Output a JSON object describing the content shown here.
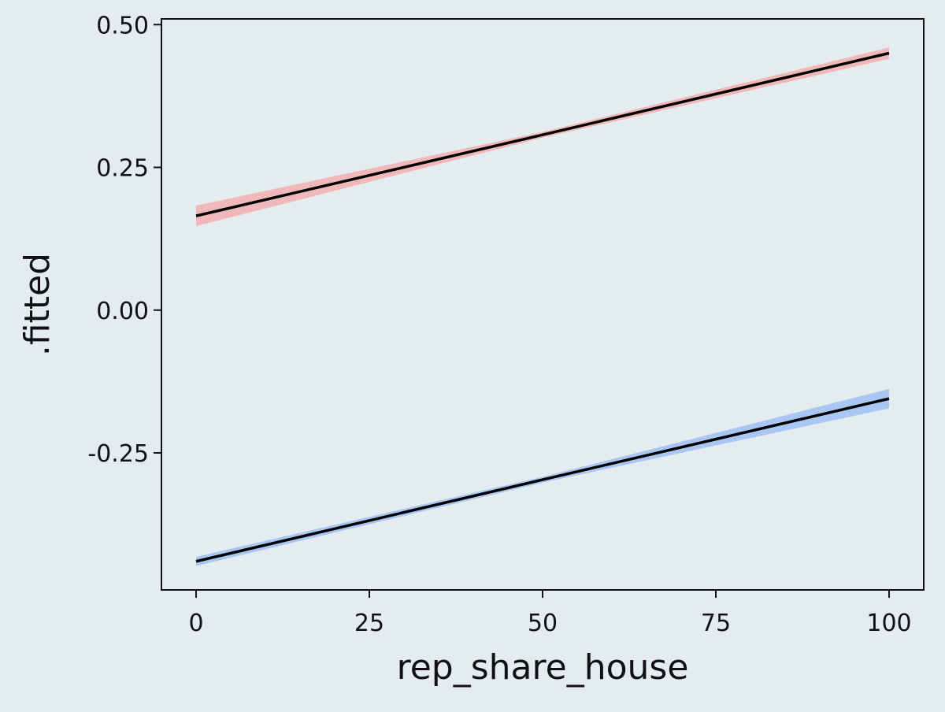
{
  "chart_data": {
    "type": "line",
    "title": "",
    "xlabel": "rep_share_house",
    "ylabel": ".fitted",
    "xlim": [
      -5,
      105
    ],
    "ylim": [
      -0.49,
      0.51
    ],
    "x_ticks": [
      0,
      25,
      50,
      75,
      100
    ],
    "x_tick_labels": [
      "0",
      "25",
      "50",
      "75",
      "100"
    ],
    "y_ticks": [
      0.5,
      0.25,
      0.0,
      -0.25
    ],
    "y_tick_labels": [
      "0.50",
      "0.25",
      "0.00",
      "-0.25"
    ],
    "grid": false,
    "legend": "none",
    "colors": {
      "background": "#e5ecf0",
      "line": "#000000",
      "axis": "#111111"
    },
    "series": [
      {
        "x": [
          0,
          50,
          100
        ],
        "y": [
          0.165,
          0.307,
          0.45
        ],
        "ci_lower": [
          0.147,
          0.302,
          0.44
        ],
        "ci_upper": [
          0.183,
          0.312,
          0.46
        ],
        "band_color": "#f0b8b8"
      },
      {
        "x": [
          0,
          50,
          100
        ],
        "y": [
          -0.44,
          -0.297,
          -0.155
        ],
        "ci_lower": [
          -0.448,
          -0.302,
          -0.172
        ],
        "ci_upper": [
          -0.432,
          -0.292,
          -0.138
        ],
        "band_color": "#a9c7f2"
      }
    ]
  }
}
